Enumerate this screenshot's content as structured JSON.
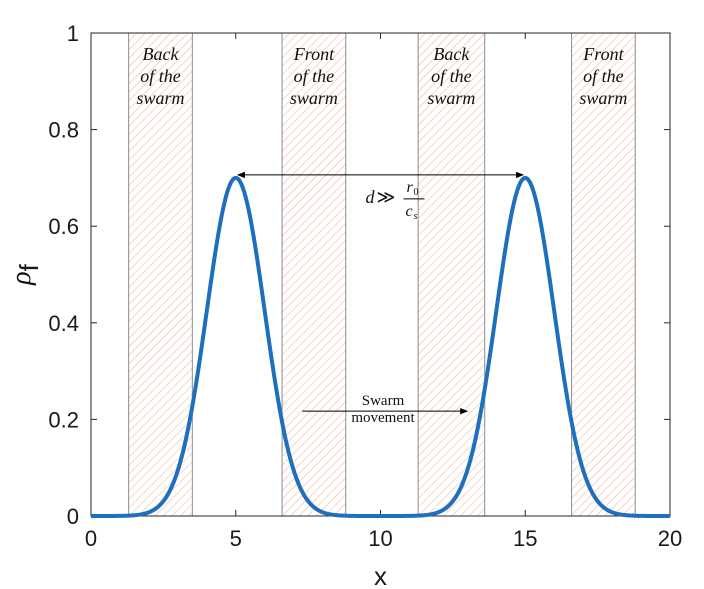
{
  "chart_data": {
    "type": "line",
    "xlabel": "x",
    "ylabel": "ρ",
    "ylabel_subscript": "f",
    "xlim": [
      0,
      20
    ],
    "ylim": [
      0,
      1
    ],
    "x_ticks": [
      0,
      5,
      10,
      15,
      20
    ],
    "x_tick_labels": [
      "0",
      "5",
      "10",
      "15",
      "20"
    ],
    "y_ticks": [
      0,
      0.2,
      0.4,
      0.6,
      0.8,
      1
    ],
    "y_tick_labels": [
      "0",
      "0.2",
      "0.4",
      "0.6",
      "0.8",
      "1"
    ],
    "grid": false,
    "series_color": "#1f6fbf",
    "series": [
      {
        "name": "",
        "shape": "gaussian",
        "peaks": [
          {
            "center": 5,
            "amplitude": 0.7,
            "sigma": 1.0
          },
          {
            "center": 15,
            "amplitude": 0.7,
            "sigma": 1.0
          }
        ]
      }
    ],
    "regions": [
      {
        "label_lines": [
          "Back",
          "of the",
          "swarm"
        ],
        "x_start": 1.3,
        "x_end": 3.5
      },
      {
        "label_lines": [
          "Front",
          "of the",
          "swarm"
        ],
        "x_start": 6.6,
        "x_end": 8.8
      },
      {
        "label_lines": [
          "Back",
          "of the",
          "swarm"
        ],
        "x_start": 11.3,
        "x_end": 13.6
      },
      {
        "label_lines": [
          "Front",
          "of the",
          "swarm"
        ],
        "x_start": 16.6,
        "x_end": 18.8
      }
    ],
    "region_color": "#f2b9a0",
    "annotations": {
      "distance": {
        "x_from": 5,
        "x_to": 15,
        "y": 0.7,
        "lhs": "d",
        "relation": "≫",
        "numerator": "r",
        "numerator_sub": "0",
        "denominator": "c",
        "denominator_sub": "s"
      },
      "movement": {
        "x_from": 7.3,
        "x_to": 13.0,
        "y": 0.215,
        "label_lines": [
          "Swarm",
          "movement"
        ]
      }
    }
  }
}
